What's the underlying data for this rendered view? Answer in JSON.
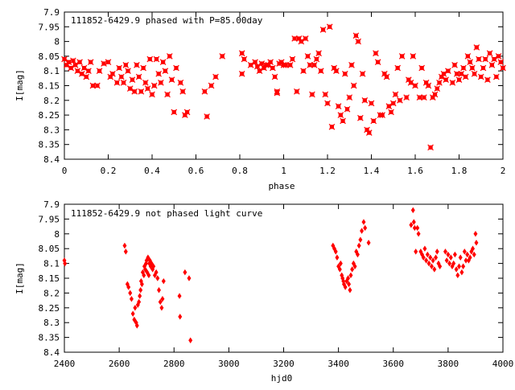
{
  "chart_data": [
    {
      "type": "scatter",
      "title": "111852-6429.9 phased with P=85.00day",
      "xlabel": "phase",
      "ylabel": "I[mag]",
      "xlim": [
        0,
        2
      ],
      "ylim": [
        7.9,
        8.4
      ],
      "y_inverted": true,
      "x_ticks": [
        "0",
        "0.2",
        "0.4",
        "0.6",
        "0.8",
        "1",
        "1.2",
        "1.4",
        "1.6",
        "1.8",
        "2"
      ],
      "y_ticks": [
        "7.9",
        "7.95",
        "8",
        "8.05",
        "8.1",
        "8.15",
        "8.2",
        "8.25",
        "8.3",
        "8.35",
        "8.4"
      ],
      "marker_color": "#ff0000",
      "marker": "cross-box",
      "grid": false,
      "points": [
        [
          0.0,
          8.06
        ],
        [
          0.01,
          8.08
        ],
        [
          0.02,
          8.07
        ],
        [
          0.03,
          8.09
        ],
        [
          0.04,
          8.065
        ],
        [
          0.05,
          8.08
        ],
        [
          0.06,
          8.1
        ],
        [
          0.07,
          8.07
        ],
        [
          0.08,
          8.11
        ],
        [
          0.09,
          8.09
        ],
        [
          0.1,
          8.12
        ],
        [
          0.11,
          8.1
        ],
        [
          0.12,
          8.07
        ],
        [
          0.13,
          8.15
        ],
        [
          0.15,
          8.15
        ],
        [
          0.16,
          8.1
        ],
        [
          0.18,
          8.075
        ],
        [
          0.2,
          8.07
        ],
        [
          0.21,
          8.12
        ],
        [
          0.22,
          8.11
        ],
        [
          0.24,
          8.14
        ],
        [
          0.25,
          8.09
        ],
        [
          0.26,
          8.12
        ],
        [
          0.27,
          8.14
        ],
        [
          0.28,
          8.08
        ],
        [
          0.29,
          8.1
        ],
        [
          0.3,
          8.16
        ],
        [
          0.31,
          8.13
        ],
        [
          0.32,
          8.17
        ],
        [
          0.33,
          8.08
        ],
        [
          0.34,
          8.12
        ],
        [
          0.35,
          8.17
        ],
        [
          0.36,
          8.09
        ],
        [
          0.37,
          8.14
        ],
        [
          0.38,
          8.16
        ],
        [
          0.39,
          8.06
        ],
        [
          0.4,
          8.18
        ],
        [
          0.41,
          8.15
        ],
        [
          0.42,
          8.06
        ],
        [
          0.43,
          8.11
        ],
        [
          0.44,
          8.14
        ],
        [
          0.45,
          8.07
        ],
        [
          0.46,
          8.1
        ],
        [
          0.47,
          8.18
        ],
        [
          0.48,
          8.05
        ],
        [
          0.49,
          8.13
        ],
        [
          0.5,
          8.24
        ],
        [
          0.51,
          8.09
        ],
        [
          0.53,
          8.14
        ],
        [
          0.54,
          8.17
        ],
        [
          0.55,
          8.25
        ],
        [
          0.56,
          8.24
        ],
        [
          0.64,
          8.17
        ],
        [
          0.65,
          8.255
        ],
        [
          0.67,
          8.15
        ],
        [
          0.69,
          8.12
        ],
        [
          0.72,
          8.05
        ],
        [
          0.81,
          8.11
        ],
        [
          0.81,
          8.04
        ],
        [
          0.82,
          8.06
        ],
        [
          0.85,
          8.08
        ],
        [
          0.87,
          8.07
        ],
        [
          0.88,
          8.085
        ],
        [
          0.89,
          8.1
        ],
        [
          0.9,
          8.075
        ],
        [
          0.91,
          8.09
        ],
        [
          0.92,
          8.08
        ],
        [
          0.93,
          8.08
        ],
        [
          0.94,
          8.07
        ],
        [
          0.95,
          8.09
        ],
        [
          0.96,
          8.12
        ],
        [
          0.97,
          8.17
        ],
        [
          0.97,
          8.175
        ],
        [
          0.98,
          8.075
        ],
        [
          0.99,
          8.07
        ],
        [
          1.0,
          8.08
        ],
        [
          1.01,
          8.08
        ],
        [
          1.03,
          8.08
        ],
        [
          1.04,
          8.06
        ],
        [
          1.05,
          7.99
        ],
        [
          1.06,
          8.17
        ],
        [
          1.07,
          7.99
        ],
        [
          1.08,
          8.0
        ],
        [
          1.09,
          8.1
        ],
        [
          1.1,
          7.99
        ],
        [
          1.11,
          8.05
        ],
        [
          1.12,
          8.08
        ],
        [
          1.13,
          8.18
        ],
        [
          1.14,
          8.08
        ],
        [
          1.15,
          8.06
        ],
        [
          1.16,
          8.04
        ],
        [
          1.17,
          8.1
        ],
        [
          1.18,
          7.96
        ],
        [
          1.19,
          8.18
        ],
        [
          1.2,
          8.21
        ],
        [
          1.21,
          7.95
        ],
        [
          1.22,
          8.29
        ],
        [
          1.23,
          8.09
        ],
        [
          1.24,
          8.1
        ],
        [
          1.25,
          8.22
        ],
        [
          1.26,
          8.25
        ],
        [
          1.27,
          8.27
        ],
        [
          1.28,
          8.11
        ],
        [
          1.29,
          8.23
        ],
        [
          1.3,
          8.19
        ],
        [
          1.31,
          8.08
        ],
        [
          1.32,
          8.15
        ],
        [
          1.33,
          7.98
        ],
        [
          1.34,
          8.0
        ],
        [
          1.35,
          8.26
        ],
        [
          1.36,
          8.11
        ],
        [
          1.37,
          8.2
        ],
        [
          1.38,
          8.3
        ],
        [
          1.39,
          8.31
        ],
        [
          1.4,
          8.21
        ],
        [
          1.41,
          8.27
        ],
        [
          1.42,
          8.04
        ],
        [
          1.43,
          8.07
        ],
        [
          1.44,
          8.25
        ],
        [
          1.45,
          8.25
        ],
        [
          1.46,
          8.11
        ],
        [
          1.47,
          8.12
        ],
        [
          1.48,
          8.22
        ],
        [
          1.49,
          8.24
        ],
        [
          1.5,
          8.21
        ],
        [
          1.51,
          8.18
        ],
        [
          1.52,
          8.09
        ],
        [
          1.53,
          8.2
        ],
        [
          1.54,
          8.05
        ],
        [
          1.56,
          8.19
        ],
        [
          1.57,
          8.13
        ],
        [
          1.58,
          8.14
        ],
        [
          1.59,
          8.05
        ],
        [
          1.6,
          8.15
        ],
        [
          1.62,
          8.19
        ],
        [
          1.63,
          8.09
        ],
        [
          1.64,
          8.19
        ],
        [
          1.65,
          8.14
        ],
        [
          1.66,
          8.15
        ],
        [
          1.67,
          8.36
        ],
        [
          1.68,
          8.19
        ],
        [
          1.69,
          8.18
        ],
        [
          1.7,
          8.16
        ],
        [
          1.71,
          8.14
        ],
        [
          1.72,
          8.12
        ],
        [
          1.73,
          8.11
        ],
        [
          1.74,
          8.13
        ],
        [
          1.75,
          8.1
        ],
        [
          1.77,
          8.14
        ],
        [
          1.78,
          8.08
        ],
        [
          1.79,
          8.11
        ],
        [
          1.8,
          8.13
        ],
        [
          1.81,
          8.11
        ],
        [
          1.82,
          8.09
        ],
        [
          1.83,
          8.12
        ],
        [
          1.84,
          8.05
        ],
        [
          1.85,
          8.07
        ],
        [
          1.86,
          8.09
        ],
        [
          1.87,
          8.11
        ],
        [
          1.88,
          8.02
        ],
        [
          1.89,
          8.06
        ],
        [
          1.9,
          8.12
        ],
        [
          1.91,
          8.09
        ],
        [
          1.92,
          8.06
        ],
        [
          1.93,
          8.13
        ],
        [
          1.94,
          8.04
        ],
        [
          1.95,
          8.08
        ],
        [
          1.96,
          8.06
        ],
        [
          1.97,
          8.12
        ],
        [
          1.98,
          8.05
        ],
        [
          1.99,
          8.07
        ],
        [
          2.0,
          8.09
        ]
      ]
    },
    {
      "type": "scatter",
      "title": "111852-6429.9 not phased light curve",
      "xlabel": "hjd0",
      "ylabel": "I[mag]",
      "xlim": [
        2400,
        4000
      ],
      "ylim": [
        7.9,
        8.4
      ],
      "y_inverted": true,
      "x_ticks": [
        "2400",
        "2600",
        "2800",
        "3000",
        "3200",
        "3400",
        "3600",
        "3800",
        "4000"
      ],
      "y_ticks": [
        "7.9",
        "7.95",
        "8",
        "8.05",
        "8.1",
        "8.15",
        "8.2",
        "8.25",
        "8.3",
        "8.35",
        "8.4"
      ],
      "marker_color": "#ff0000",
      "marker": "diamond",
      "grid": false,
      "points": [
        [
          2400,
          8.09
        ],
        [
          2402,
          8.1
        ],
        [
          2620,
          8.04
        ],
        [
          2624,
          8.06
        ],
        [
          2630,
          8.17
        ],
        [
          2634,
          8.18
        ],
        [
          2640,
          8.2
        ],
        [
          2645,
          8.22
        ],
        [
          2650,
          8.27
        ],
        [
          2655,
          8.29
        ],
        [
          2658,
          8.25
        ],
        [
          2662,
          8.3
        ],
        [
          2665,
          8.31
        ],
        [
          2668,
          8.24
        ],
        [
          2672,
          8.23
        ],
        [
          2675,
          8.21
        ],
        [
          2678,
          8.19
        ],
        [
          2680,
          8.16
        ],
        [
          2683,
          8.17
        ],
        [
          2686,
          8.13
        ],
        [
          2690,
          8.14
        ],
        [
          2692,
          8.11
        ],
        [
          2695,
          8.12
        ],
        [
          2698,
          8.1
        ],
        [
          2700,
          8.09
        ],
        [
          2702,
          8.13
        ],
        [
          2705,
          8.08
        ],
        [
          2708,
          8.14
        ],
        [
          2710,
          8.1
        ],
        [
          2712,
          8.09
        ],
        [
          2715,
          8.11
        ],
        [
          2718,
          8.1
        ],
        [
          2722,
          8.12
        ],
        [
          2725,
          8.11
        ],
        [
          2730,
          8.14
        ],
        [
          2735,
          8.13
        ],
        [
          2740,
          8.15
        ],
        [
          2745,
          8.19
        ],
        [
          2750,
          8.23
        ],
        [
          2755,
          8.25
        ],
        [
          2758,
          8.22
        ],
        [
          2762,
          8.16
        ],
        [
          2820,
          8.21
        ],
        [
          2822,
          8.28
        ],
        [
          2840,
          8.13
        ],
        [
          2855,
          8.15
        ],
        [
          2860,
          8.36
        ],
        [
          3380,
          8.04
        ],
        [
          3385,
          8.05
        ],
        [
          3390,
          8.06
        ],
        [
          3395,
          8.08
        ],
        [
          3400,
          8.11
        ],
        [
          3405,
          8.12
        ],
        [
          3408,
          8.1
        ],
        [
          3412,
          8.14
        ],
        [
          3415,
          8.15
        ],
        [
          3418,
          8.16
        ],
        [
          3420,
          8.17
        ],
        [
          3425,
          8.18
        ],
        [
          3430,
          8.16
        ],
        [
          3435,
          8.15
        ],
        [
          3438,
          8.17
        ],
        [
          3442,
          8.19
        ],
        [
          3445,
          8.14
        ],
        [
          3450,
          8.12
        ],
        [
          3455,
          8.1
        ],
        [
          3460,
          8.11
        ],
        [
          3465,
          8.06
        ],
        [
          3470,
          8.07
        ],
        [
          3475,
          8.04
        ],
        [
          3480,
          8.02
        ],
        [
          3485,
          7.99
        ],
        [
          3492,
          7.96
        ],
        [
          3497,
          7.98
        ],
        [
          3510,
          8.03
        ],
        [
          3665,
          7.97
        ],
        [
          3672,
          7.92
        ],
        [
          3675,
          7.96
        ],
        [
          3678,
          7.98
        ],
        [
          3682,
          8.06
        ],
        [
          3688,
          7.98
        ],
        [
          3692,
          8.0
        ],
        [
          3700,
          8.06
        ],
        [
          3705,
          8.07
        ],
        [
          3710,
          8.08
        ],
        [
          3715,
          8.05
        ],
        [
          3720,
          8.09
        ],
        [
          3725,
          8.07
        ],
        [
          3730,
          8.1
        ],
        [
          3735,
          8.08
        ],
        [
          3740,
          8.11
        ],
        [
          3745,
          8.09
        ],
        [
          3750,
          8.12
        ],
        [
          3755,
          8.08
        ],
        [
          3760,
          8.06
        ],
        [
          3765,
          8.1
        ],
        [
          3770,
          8.11
        ],
        [
          3790,
          8.06
        ],
        [
          3795,
          8.09
        ],
        [
          3800,
          8.07
        ],
        [
          3805,
          8.1
        ],
        [
          3810,
          8.08
        ],
        [
          3815,
          8.11
        ],
        [
          3820,
          8.1
        ],
        [
          3825,
          8.07
        ],
        [
          3830,
          8.12
        ],
        [
          3835,
          8.14
        ],
        [
          3840,
          8.11
        ],
        [
          3845,
          8.08
        ],
        [
          3850,
          8.13
        ],
        [
          3855,
          8.11
        ],
        [
          3860,
          8.06
        ],
        [
          3865,
          8.09
        ],
        [
          3870,
          8.07
        ],
        [
          3875,
          8.09
        ],
        [
          3880,
          8.08
        ],
        [
          3885,
          8.06
        ],
        [
          3890,
          8.05
        ],
        [
          3895,
          8.07
        ],
        [
          3900,
          8.0
        ],
        [
          3903,
          8.03
        ]
      ]
    }
  ]
}
